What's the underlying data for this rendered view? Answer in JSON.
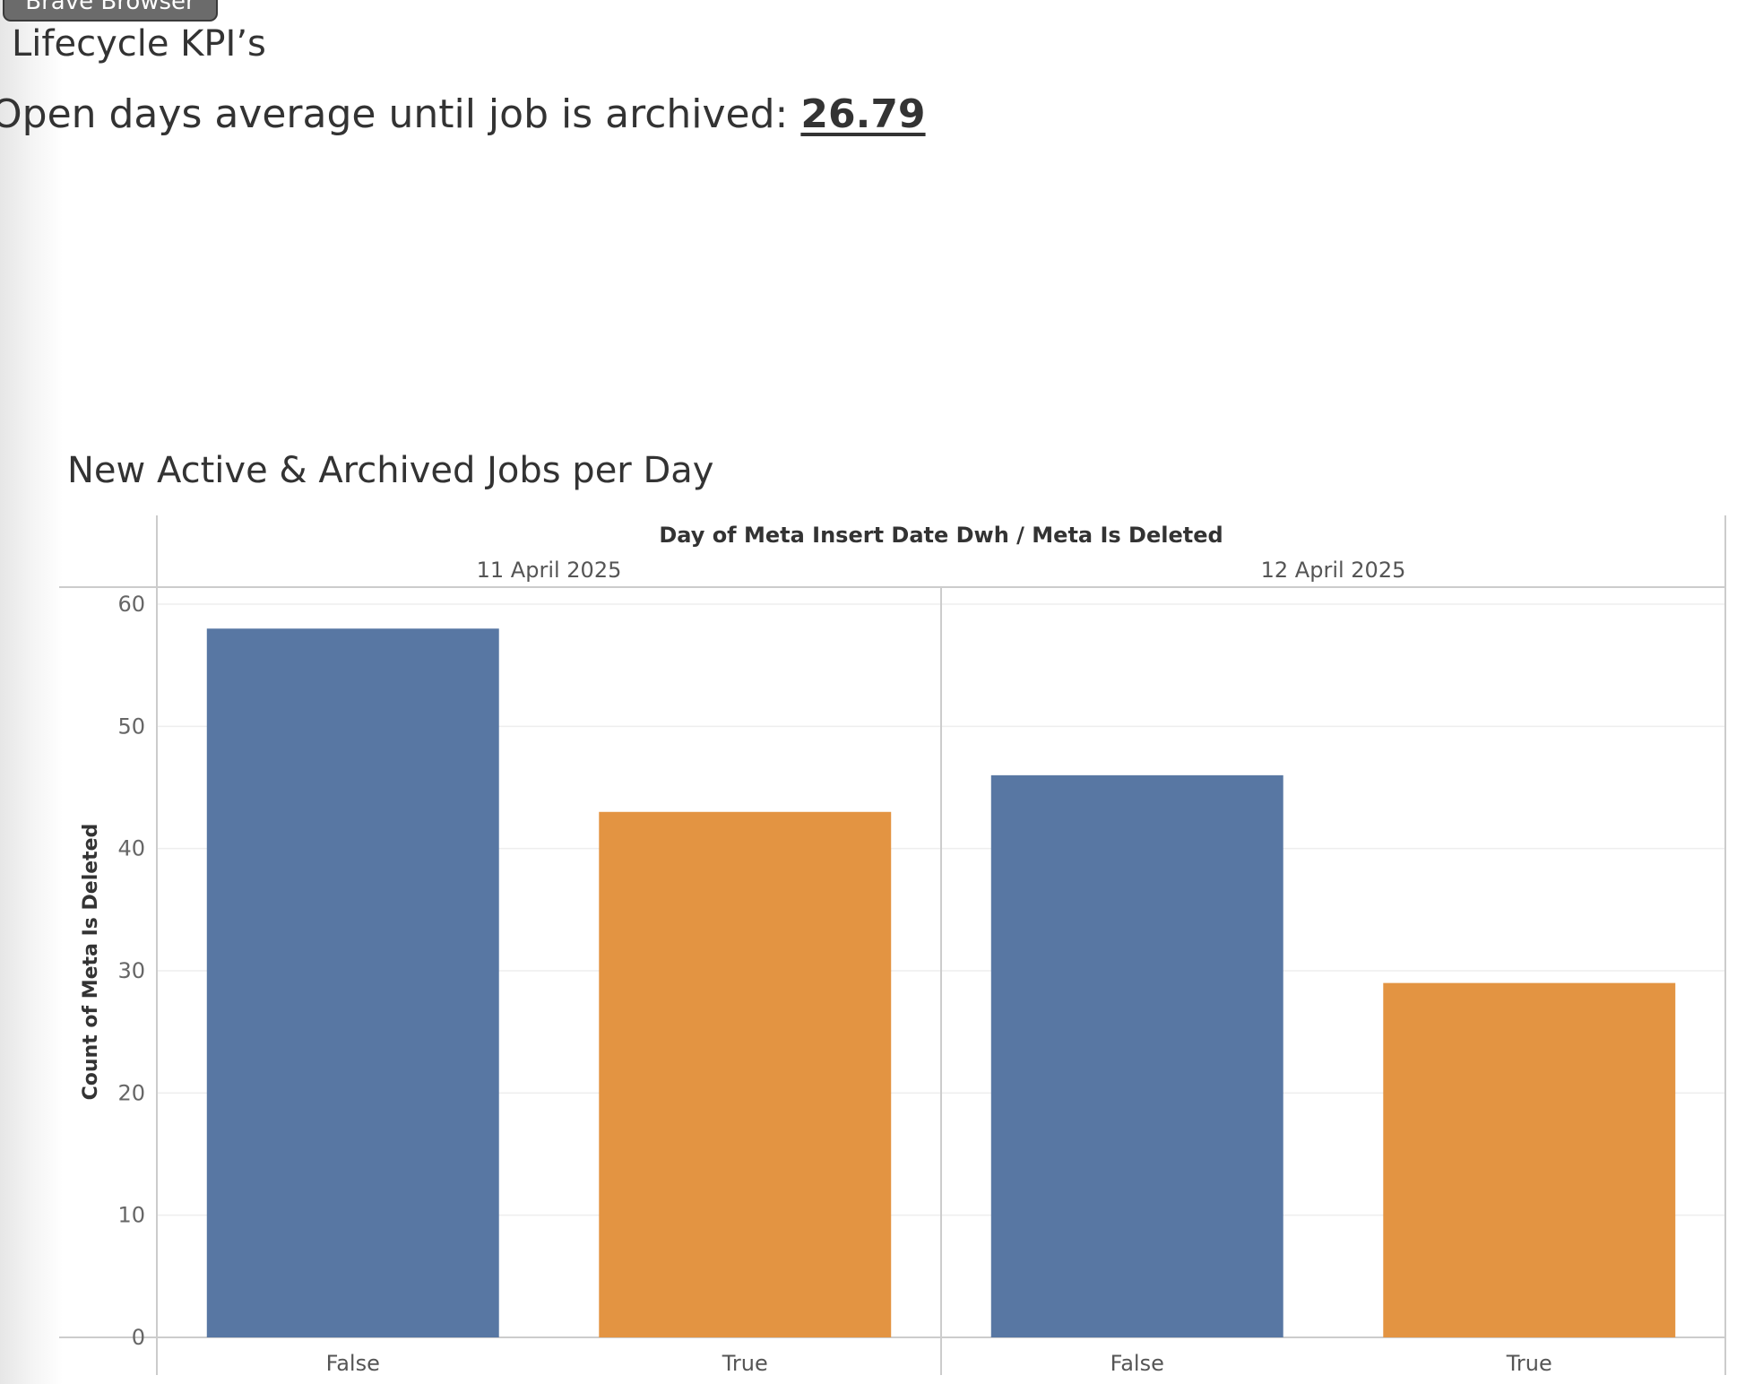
{
  "tooltip": {
    "label": "Brave Browser"
  },
  "section": {
    "title": "Lifecycle KPI’s"
  },
  "kpi": {
    "label": "Open days average until job is archived:",
    "value": "26.79"
  },
  "chart_data": {
    "type": "bar",
    "title": "New Active & Archived Jobs per Day",
    "header": "Day of Meta Insert Date Dwh / Meta Is Deleted",
    "ylabel": "Count of Meta Is Deleted",
    "xlabel": "",
    "ylim": [
      0,
      60
    ],
    "yticks": [
      0,
      10,
      20,
      30,
      40,
      50,
      60
    ],
    "groups": [
      {
        "name": "11 April 2025",
        "categories": [
          "False",
          "True"
        ],
        "values": [
          58,
          43
        ]
      },
      {
        "name": "12 April 2025",
        "categories": [
          "False",
          "True"
        ],
        "values": [
          46,
          29
        ]
      }
    ],
    "colors": {
      "False": "#5877a3",
      "True": "#e39442"
    },
    "grid": true
  }
}
